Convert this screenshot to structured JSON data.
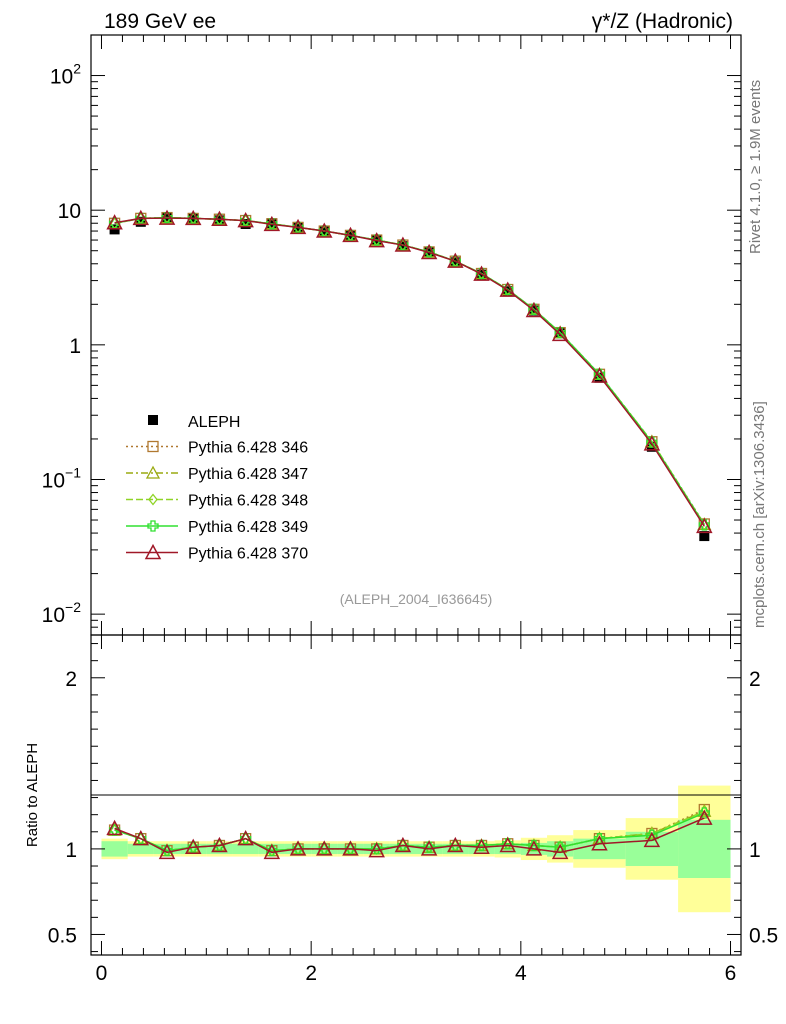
{
  "header": {
    "left": "189 GeV ee",
    "right_sym": "γ*/Z",
    "right_text": "(Hadronic)"
  },
  "side": {
    "rivet": "Rivet 4.1.0, ≥ 1.9M events",
    "mcplots": "mcplots.cern.ch [arXiv:1306.3436]"
  },
  "chart_data": {
    "type": "scatter",
    "analysis_label": "(ALEPH_2004_I636645)",
    "x_ticks": [
      "0",
      "2",
      "4",
      "6"
    ],
    "xlim": [
      -0.1,
      6.1
    ],
    "main": {
      "yscale": "log",
      "ylim": [
        0.007,
        200
      ],
      "y_ticks": [
        {
          "v": 0.01,
          "base": "10",
          "exp": "−2"
        },
        {
          "v": 0.1,
          "base": "10",
          "exp": "−1"
        },
        {
          "v": 1,
          "base": "1",
          "exp": ""
        },
        {
          "v": 10,
          "base": "10",
          "exp": ""
        },
        {
          "v": 100,
          "base": "10",
          "exp": "2"
        }
      ]
    },
    "ratio": {
      "ylabel": "Ratio to ALEPH",
      "ylim": [
        0.38,
        2.25
      ],
      "y_ticks": [
        "0.5",
        "1",
        "2"
      ]
    },
    "x": [
      0.125,
      0.375,
      0.625,
      0.875,
      1.125,
      1.375,
      1.625,
      1.875,
      2.125,
      2.375,
      2.625,
      2.875,
      3.125,
      3.375,
      3.625,
      3.875,
      4.125,
      4.375,
      4.75,
      5.25,
      5.75
    ],
    "bin_edges": [
      0,
      0.25,
      0.5,
      0.75,
      1.0,
      1.25,
      1.5,
      1.75,
      2.0,
      2.25,
      2.5,
      2.75,
      3.0,
      3.25,
      3.5,
      3.75,
      4.0,
      4.25,
      4.5,
      5.0,
      5.5,
      6.0
    ],
    "data": {
      "name": "ALEPH",
      "values": [
        7.2,
        8.2,
        8.9,
        8.6,
        8.4,
        7.9,
        8.0,
        7.45,
        7.0,
        6.5,
        6.0,
        5.4,
        4.85,
        4.1,
        3.32,
        2.5,
        1.8,
        1.22,
        0.57,
        0.175,
        0.038
      ],
      "band_inner": [
        0.045,
        0.03,
        0.03,
        0.03,
        0.03,
        0.03,
        0.03,
        0.03,
        0.03,
        0.03,
        0.03,
        0.03,
        0.03,
        0.03,
        0.03,
        0.03,
        0.035,
        0.045,
        0.06,
        0.1,
        0.17
      ],
      "band_outer": [
        0.06,
        0.045,
        0.045,
        0.045,
        0.045,
        0.045,
        0.045,
        0.045,
        0.045,
        0.045,
        0.045,
        0.045,
        0.045,
        0.045,
        0.045,
        0.05,
        0.065,
        0.08,
        0.11,
        0.18,
        0.37
      ]
    },
    "series": [
      {
        "name": "Pythia 6.428 346",
        "color": "#b07830",
        "dash": "2,3",
        "marker": "square",
        "ratio": [
          1.11,
          1.06,
          0.99,
          1.01,
          1.02,
          1.06,
          0.99,
          1.0,
          1.0,
          1.0,
          1.0,
          1.02,
          1.01,
          1.02,
          1.02,
          1.03,
          1.02,
          1.01,
          1.06,
          1.09,
          1.23
        ]
      },
      {
        "name": "Pythia 6.428 347",
        "color": "#9aaa10",
        "dash": "7,3,2,3",
        "marker": "triangle",
        "ratio": [
          1.11,
          1.06,
          0.99,
          1.01,
          1.02,
          1.06,
          0.99,
          1.0,
          1.0,
          1.0,
          1.0,
          1.02,
          1.01,
          1.02,
          1.02,
          1.03,
          1.02,
          1.01,
          1.06,
          1.09,
          1.22
        ]
      },
      {
        "name": "Pythia 6.428 348",
        "color": "#8fd426",
        "dash": "7,3",
        "marker": "diamond",
        "ratio": [
          1.11,
          1.06,
          0.99,
          1.01,
          1.02,
          1.06,
          0.99,
          1.0,
          1.0,
          1.0,
          1.0,
          1.02,
          1.01,
          1.02,
          1.02,
          1.03,
          1.02,
          1.01,
          1.06,
          1.09,
          1.22
        ]
      },
      {
        "name": "Pythia 6.428 349",
        "color": "#30e030",
        "dash": "",
        "marker": "cross",
        "ratio": [
          1.11,
          1.06,
          0.99,
          1.01,
          1.02,
          1.06,
          0.99,
          1.0,
          1.0,
          1.0,
          1.0,
          1.02,
          1.01,
          1.02,
          1.02,
          1.03,
          1.02,
          1.01,
          1.06,
          1.08,
          1.21
        ]
      },
      {
        "name": "Pythia 6.428 370",
        "color": "#a01828",
        "dash": "",
        "marker": "triangle-open",
        "ratio": [
          1.12,
          1.06,
          0.98,
          1.01,
          1.02,
          1.06,
          0.98,
          1.0,
          1.0,
          1.0,
          0.99,
          1.02,
          1.0,
          1.02,
          1.01,
          1.02,
          1.0,
          0.98,
          1.03,
          1.05,
          1.18
        ]
      }
    ]
  }
}
